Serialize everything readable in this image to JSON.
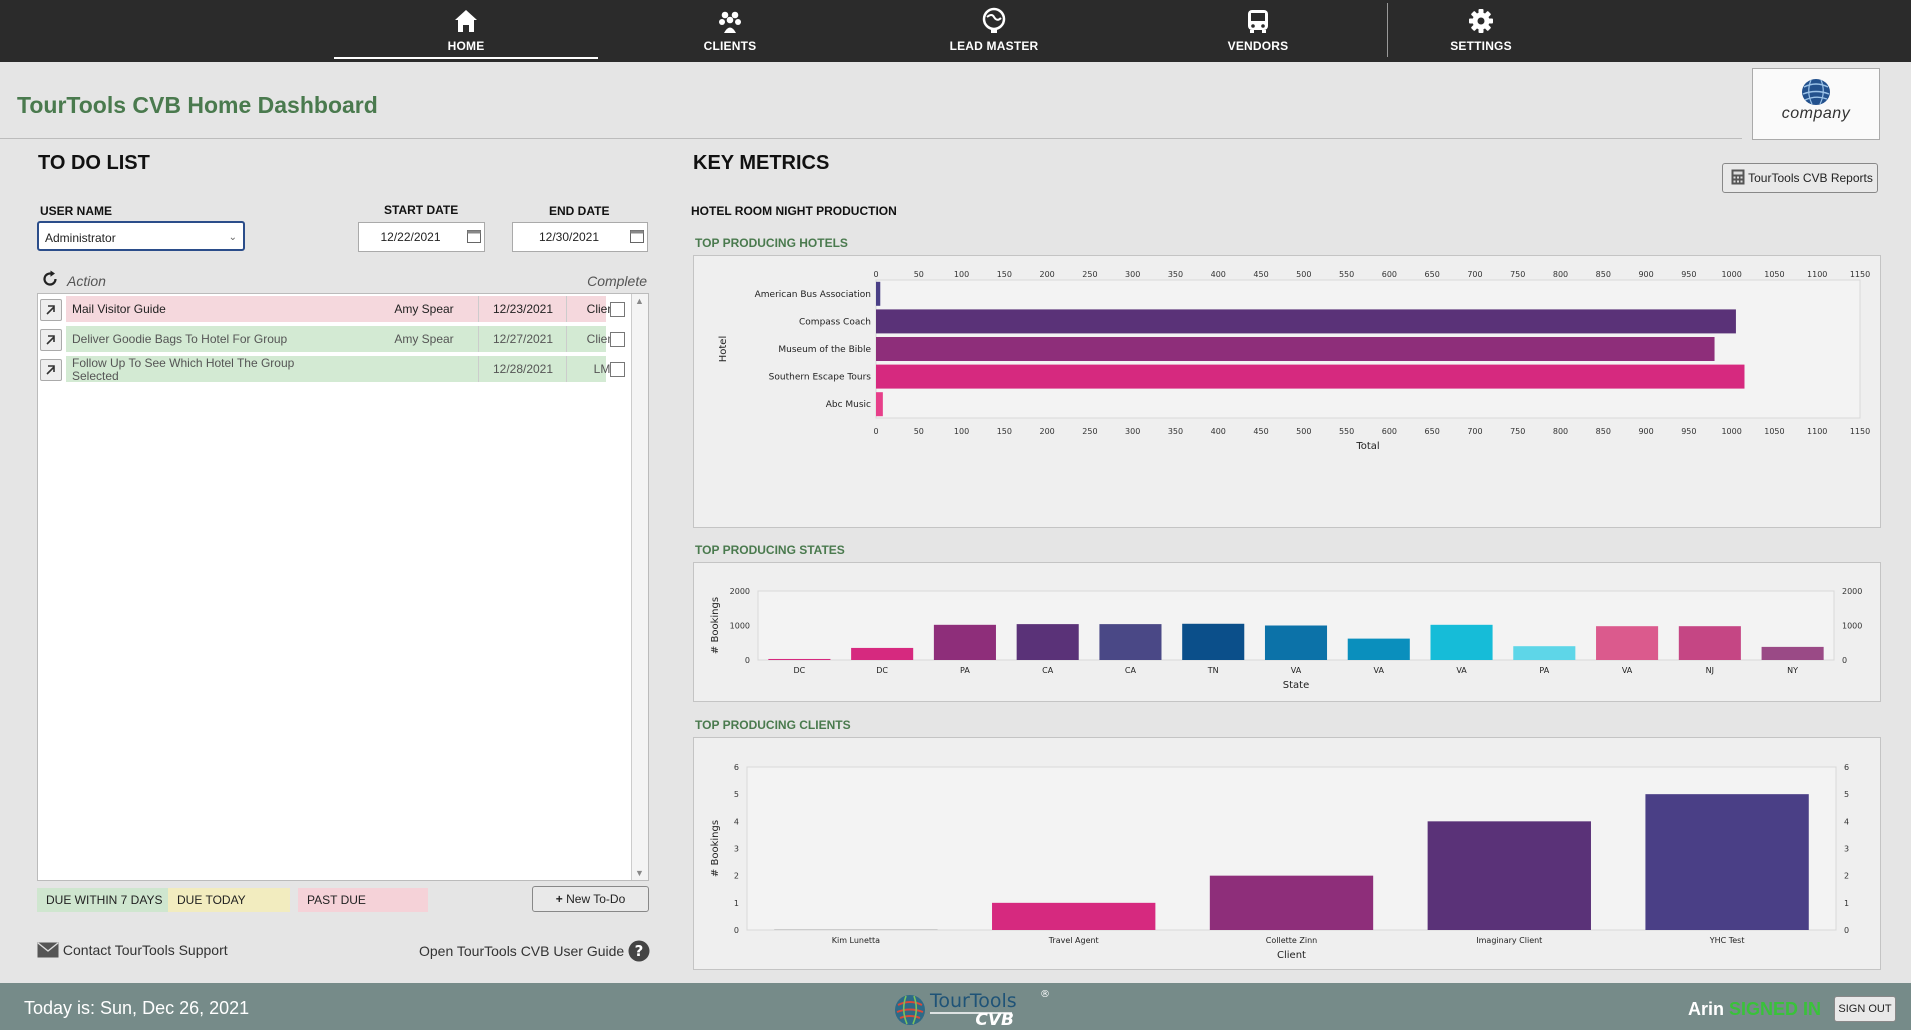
{
  "nav": [
    {
      "label": "HOME",
      "icon": "home-icon",
      "active": true
    },
    {
      "label": "CLIENTS",
      "icon": "clients-icon"
    },
    {
      "label": "LEAD MASTER",
      "icon": "lead-master-icon"
    },
    {
      "label": "VENDORS",
      "icon": "bus-icon"
    },
    {
      "label": "SETTINGS",
      "icon": "gear-icon"
    }
  ],
  "page_title": "TourTools CVB Home Dashboard",
  "logo_text": "company",
  "todo": {
    "heading": "TO DO LIST",
    "user_label": "USER NAME",
    "user_value": "Administrator",
    "start_label": "START DATE",
    "start_value": "12/22/2021",
    "end_label": "END DATE",
    "end_value": "12/30/2021",
    "action_header": "Action",
    "complete_header": "Complete",
    "rows": [
      {
        "action": "Mail Visitor Guide",
        "assignee": "Amy Spear",
        "date": "12/23/2021",
        "type": "Client",
        "status": "past-due"
      },
      {
        "action": "Deliver Goodie Bags To Hotel For Group",
        "assignee": "Amy Spear",
        "date": "12/27/2021",
        "type": "Client",
        "status": "due-within-7"
      },
      {
        "action": "Follow Up To See Which Hotel The Group Selected",
        "assignee": "",
        "date": "12/28/2021",
        "type": "LM",
        "status": "due-within-7"
      }
    ],
    "legend": [
      {
        "label": "DUE WITHIN 7 DAYS",
        "color": "#cfe6cf"
      },
      {
        "label": "DUE TODAY",
        "color": "#f2ecbf"
      },
      {
        "label": "PAST DUE",
        "color": "#f5d2d8"
      }
    ],
    "new_button": "New To-Do",
    "support_link": "Contact TourTools Support",
    "guide_link": "Open TourTools CVB User Guide"
  },
  "metrics": {
    "heading": "KEY METRICS",
    "reports_button": "TourTools CVB Reports",
    "subheading": "HOTEL ROOM NIGHT PRODUCTION"
  },
  "chart_data": [
    {
      "type": "bar",
      "orientation": "horizontal",
      "title": "TOP PRODUCING HOTELS",
      "categories": [
        "American Bus Association",
        "Compass Coach",
        "Museum of the Bible",
        "Southern Escape Tours",
        "Abc Music"
      ],
      "values": [
        5,
        1005,
        980,
        1015,
        8
      ],
      "colors": [
        "#4a3f86",
        "#5a3278",
        "#8e2e7a",
        "#d6297f",
        "#e73f8a"
      ],
      "xlabel": "Total",
      "ylabel": "Hotel",
      "xlim": [
        0,
        1150
      ],
      "xticks": [
        "0",
        "50",
        "100",
        "150",
        "200",
        "250",
        "300",
        "350",
        "400",
        "450",
        "500",
        "550",
        "600",
        "650",
        "700",
        "750",
        "800",
        "850",
        "900",
        "950",
        "1000",
        "1050",
        "1100",
        "1150"
      ]
    },
    {
      "type": "bar",
      "title": "TOP PRODUCING STATES",
      "categories": [
        "DC",
        "DC",
        "PA",
        "CA",
        "CA",
        "TN",
        "VA",
        "VA",
        "VA",
        "PA",
        "VA",
        "NJ",
        "NY"
      ],
      "values": [
        30,
        350,
        1020,
        1040,
        1040,
        1050,
        1000,
        620,
        1020,
        400,
        980,
        980,
        380
      ],
      "colors": [
        "#d6297f",
        "#d6297f",
        "#8e2e7a",
        "#5a3278",
        "#4a4886",
        "#0b4f8a",
        "#0c72a8",
        "#0a8fbd",
        "#16bcd8",
        "#5ed6e8",
        "#db5a8d",
        "#c54684",
        "#9a4a86"
      ],
      "xlabel": "State",
      "ylabel": "# Bookings",
      "ylim": [
        0,
        2000
      ],
      "yticks": [
        "0",
        "1000",
        "2000"
      ]
    },
    {
      "type": "bar",
      "title": "TOP PRODUCING CLIENTS",
      "categories": [
        "Kim Lunetta",
        "Travel Agent",
        "Collette Zinn",
        "Imaginary Client",
        "YHC Test"
      ],
      "values": [
        0,
        1,
        2,
        4,
        5
      ],
      "colors": [
        "#cccccc",
        "#d6297f",
        "#8e2e7a",
        "#5a3278",
        "#4a3f86"
      ],
      "xlabel": "Client",
      "ylabel": "# Bookings",
      "ylim": [
        0,
        6
      ],
      "yticks": [
        "0",
        "1",
        "2",
        "3",
        "4",
        "5",
        "6"
      ]
    }
  ],
  "status": {
    "today": "Today is: Sun, Dec 26, 2021",
    "brand_top": "TourTools",
    "brand_bottom": "CVB",
    "brand_mark": "®",
    "user": "Arin",
    "signed": "SIGNED IN",
    "signout": "SIGN OUT"
  }
}
